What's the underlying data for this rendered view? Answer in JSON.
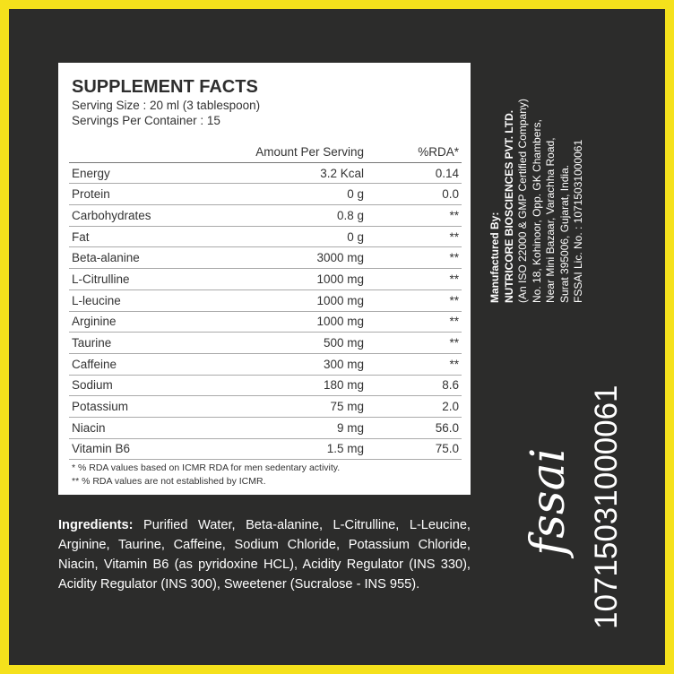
{
  "header": {
    "title": "SUPPLEMENT FACTS",
    "serving_size": "Serving Size : 20 ml (3 tablespoon)",
    "servings_per_container": "Servings Per Container : 15"
  },
  "table": {
    "columns": [
      "Amount Per Serving",
      "%RDA*"
    ],
    "rows": [
      [
        "Energy",
        "3.2 Kcal",
        "0.14"
      ],
      [
        "Protein",
        "0 g",
        "0.0"
      ],
      [
        "Carbohydrates",
        "0.8 g",
        "**"
      ],
      [
        "Fat",
        "0 g",
        "**"
      ],
      [
        "Beta-alanine",
        "3000 mg",
        "**"
      ],
      [
        "L-Citrulline",
        "1000 mg",
        "**"
      ],
      [
        "L-leucine",
        "1000 mg",
        "**"
      ],
      [
        "Arginine",
        "1000 mg",
        "**"
      ],
      [
        "Taurine",
        "500 mg",
        "**"
      ],
      [
        "Caffeine",
        "300 mg",
        "**"
      ],
      [
        "Sodium",
        "180 mg",
        "8.6"
      ],
      [
        "Potassium",
        "75 mg",
        "2.0"
      ],
      [
        "Niacin",
        "9 mg",
        "56.0"
      ],
      [
        "Vitamin B6",
        "1.5 mg",
        "75.0"
      ]
    ]
  },
  "footnotes": [
    "* % RDA values based on ICMR RDA for men sedentary activity.",
    "** % RDA values are not established by ICMR."
  ],
  "ingredients": {
    "label": "Ingredients:",
    "text": "Purified Water, Beta-alanine, L-Citrulline, L-Leucine, Arginine, Taurine, Caffeine, Sodium Chloride, Potassium Chloride, Niacin, Vitamin B6 (as pyridoxine HCL), Acidity Regulator (INS 330), Acidity Regulator (INS 300), Sweetener (Sucralose - INS 955)."
  },
  "manufacturer": {
    "heading": "Manufactured By:",
    "company": "NUTRICORE BIOSCIENCES PVT. LTD.",
    "lines": [
      "(An ISO 22000 & GMP Certified Company)",
      "No. 18, Kohinoor, Opp. GK Chambers,",
      "Near Mini Bazaar, Varachha Road,",
      "Surat 395006, Gujarat, India.",
      "FSSAI Lic. No. : 10715031000061"
    ]
  },
  "fssai": {
    "logo": "fssai",
    "license": "10715031000061"
  }
}
